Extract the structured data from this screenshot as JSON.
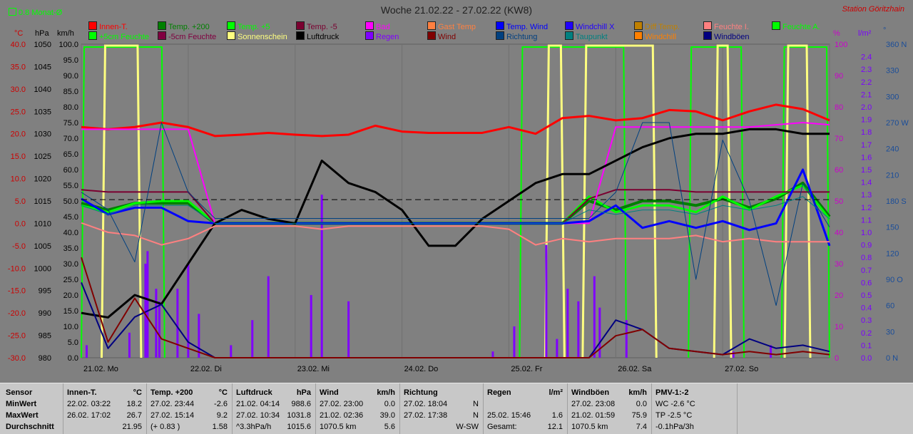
{
  "title": "Woche 21.02.22 - 27.02.22 (KW8)",
  "station": "Station Göritzhain",
  "avg_toggle": "0.8 Monat-Ø",
  "colors": {
    "bg": "#808080",
    "title": "#202020",
    "station": "#cc0000",
    "left_temp": "#cc0000",
    "left_hpa": "#000000",
    "left_kmh": "#000000",
    "right_pct": "#cc00cc",
    "right_lm2": "#7b00ff",
    "right_dir": "#1a4d99"
  },
  "legend": [
    {
      "label": "Innen-T.",
      "color": "#ff0000"
    },
    {
      "label": "Temp. +200",
      "color": "#008000"
    },
    {
      "label": "Temp. +5",
      "color": "#00ff00"
    },
    {
      "label": "Temp. -5",
      "color": "#7a0030"
    },
    {
      "label": "Bad",
      "color": "#ff00ff"
    },
    {
      "label": "Gast Temp",
      "color": "#ff8040"
    },
    {
      "label": "Temp. Wind",
      "color": "#0000ff"
    },
    {
      "label": "Windchill X",
      "color": "#2000ff"
    },
    {
      "label": "Diff Temp.",
      "color": "#c08000"
    },
    {
      "label": "Feuchte I.",
      "color": "#ff8080"
    },
    {
      "label": "Feuchte A.",
      "color": "#00ff00"
    },
    {
      "label": "+5cm Feuchte",
      "color": "#00ff00"
    },
    {
      "label": "-5cm Feuchte",
      "color": "#800040"
    },
    {
      "label": "Sonnenschein",
      "color": "#ffff80"
    },
    {
      "label": "Luftdruck",
      "color": "#000000"
    },
    {
      "label": "Regen",
      "color": "#8000ff"
    },
    {
      "label": "Wind",
      "color": "#800000"
    },
    {
      "label": "Richtung",
      "color": "#004080"
    },
    {
      "label": "Taupunkt",
      "color": "#008080"
    },
    {
      "label": "Windchill",
      "color": "#ff8000"
    },
    {
      "label": "Windböen",
      "color": "#000080"
    }
  ],
  "axes": {
    "temp_unit": "°C",
    "hpa_unit": "hPa",
    "kmh_unit": "km/h",
    "pct_unit": "%",
    "lm2_unit": "l/m²",
    "dir_unit": "°",
    "temp_ticks": [
      "40.0",
      "35.0",
      "30.0",
      "25.0",
      "20.0",
      "15.0",
      "10.0",
      "5.0",
      "0.0",
      "-5.0",
      "-10.0",
      "-15.0",
      "-20.0",
      "-25.0",
      "-30.0"
    ],
    "hpa_ticks": [
      "1050",
      "1045",
      "1040",
      "1035",
      "1030",
      "1025",
      "1020",
      "1015",
      "1010",
      "1005",
      "1000",
      "995",
      "990",
      "985",
      "980"
    ],
    "kmh_ticks": [
      "100.0",
      "95.0",
      "90.0",
      "85.0",
      "80.0",
      "75.0",
      "70.0",
      "65.0",
      "60.0",
      "55.0",
      "50.0",
      "45.0",
      "40.0",
      "35.0",
      "30.0",
      "25.0",
      "20.0",
      "15.0",
      "10.0",
      "5.0",
      "0.0"
    ],
    "pct_ticks": [
      "100",
      "90",
      "80",
      "70",
      "60",
      "50",
      "40",
      "30",
      "20",
      "10",
      "0"
    ],
    "lm2_ticks": [
      "2.4",
      "2.3",
      "2.2",
      "2.1",
      "2.0",
      "1.9",
      "1.8",
      "1.7",
      "1.6",
      "1.5",
      "1.4",
      "1.3",
      "1.2",
      "1.1",
      "1.0",
      "0.9",
      "0.8",
      "0.7",
      "0.6",
      "0.5",
      "0.4",
      "0.3",
      "0.2",
      "0.1",
      "0.0"
    ],
    "dir_ticks": [
      "360 N",
      "330",
      "300",
      "270 W",
      "240",
      "210",
      "180 S",
      "150",
      "120",
      "90 O",
      "60",
      "30",
      "0 N"
    ],
    "x_ticks": [
      "21.02. Mo",
      "22.02. Di",
      "23.02. Mi",
      "24.02. Do",
      "25.02. Fr",
      "26.02. Sa",
      "27.02. So"
    ]
  },
  "chart_data": {
    "type": "line",
    "title": "Woche 21.02.22 - 27.02.22 (KW8)",
    "x_unit": "days",
    "x": [
      0,
      0.25,
      0.5,
      0.75,
      1.0,
      1.25,
      1.5,
      1.75,
      2.0,
      2.25,
      2.5,
      2.75,
      3.0,
      3.25,
      3.5,
      3.75,
      4.0,
      4.25,
      4.5,
      4.75,
      5.0,
      5.25,
      5.5,
      5.75,
      6.0,
      6.25,
      6.5,
      6.75,
      7.0
    ],
    "series": [
      {
        "name": "Innen-T.",
        "axis": "temp",
        "color": "#ff0000",
        "width": 3,
        "values": [
          21.5,
          21.0,
          21.5,
          22.5,
          21.5,
          19.5,
          19.8,
          20.2,
          19.8,
          19.5,
          19.8,
          21.8,
          20.5,
          20.2,
          20.2,
          20.2,
          21.5,
          20.0,
          23.5,
          24.0,
          23.0,
          23.5,
          25.3,
          25.0,
          23.0,
          25.0,
          26.5,
          25.5,
          23.0
        ]
      },
      {
        "name": "Temp. +200",
        "axis": "temp",
        "color": "#008000",
        "width": 4,
        "values": [
          4.5,
          3.0,
          4.5,
          4.5,
          4.5,
          0.0,
          0.0,
          0.0,
          0.0,
          0.0,
          0.0,
          0.0,
          0.0,
          0.0,
          0.0,
          0.0,
          0.0,
          0.0,
          0.0,
          5.0,
          3.0,
          5.0,
          5.0,
          4.0,
          5.5,
          3.5,
          5.5,
          9.0,
          1.5
        ]
      },
      {
        "name": "Temp. +5",
        "axis": "temp",
        "color": "#00ff00",
        "width": 3,
        "values": [
          4.0,
          2.5,
          4.5,
          5.0,
          5.0,
          0.0,
          0.0,
          0.0,
          0.0,
          0.0,
          0.0,
          0.0,
          0.0,
          0.0,
          0.0,
          0.0,
          0.0,
          0.0,
          0.0,
          6.0,
          2.5,
          4.0,
          4.0,
          2.5,
          6.0,
          3.0,
          6.0,
          8.5,
          1.0
        ]
      },
      {
        "name": "Temp. -5",
        "axis": "temp",
        "color": "#7a0030",
        "width": 2,
        "values": [
          7.5,
          7.0,
          7.0,
          7.0,
          7.0,
          0.0,
          0.0,
          0.0,
          0.0,
          0.0,
          0.0,
          0.0,
          0.0,
          0.0,
          0.0,
          0.0,
          0.0,
          0.0,
          0.0,
          5.5,
          7.5,
          7.5,
          7.5,
          7.0,
          7.0,
          7.0,
          7.0,
          7.0,
          7.0
        ]
      },
      {
        "name": "Bad",
        "axis": "temp",
        "color": "#ff00ff",
        "width": 2,
        "values": [
          21.0,
          21.0,
          21.0,
          21.0,
          21.0,
          0.0,
          0.0,
          0.0,
          0.0,
          0.0,
          0.0,
          0.0,
          0.0,
          0.0,
          0.0,
          0.0,
          0.0,
          0.0,
          0.0,
          0.0,
          21.5,
          21.5,
          21.5,
          21.5,
          21.5,
          21.5,
          22.0,
          22.5,
          22.0
        ]
      },
      {
        "name": "Temp. Wind",
        "axis": "temp",
        "color": "#0000ff",
        "width": 3,
        "values": [
          5.5,
          2.0,
          3.5,
          3.5,
          0.5,
          0.0,
          0.0,
          0.0,
          0.0,
          0.0,
          0.0,
          0.0,
          0.0,
          0.0,
          0.0,
          0.0,
          0.0,
          0.0,
          0.0,
          0.5,
          4.0,
          -1.0,
          0.5,
          -1.0,
          0.5,
          -1.5,
          0.0,
          12.0,
          -5.0
        ]
      },
      {
        "name": "Luftdruck",
        "axis": "hpa",
        "color": "#000000",
        "width": 3,
        "values": [
          990,
          989,
          994,
          992,
          1001,
          1010,
          1013,
          1011,
          1010,
          1024,
          1019,
          1017,
          1013,
          1005,
          1005,
          1011,
          1015,
          1019,
          1021,
          1021,
          1024,
          1027,
          1029,
          1030,
          1030,
          1031,
          1031,
          1030,
          1030
        ]
      },
      {
        "name": "Feuchte I.",
        "axis": "pct",
        "color": "#ff8080",
        "width": 2,
        "values": [
          43,
          40,
          39,
          36,
          38,
          42,
          42,
          42,
          42,
          41,
          42,
          42,
          42,
          42,
          42,
          42,
          41,
          36,
          38,
          37,
          38,
          38,
          38,
          39,
          37,
          38,
          37,
          37,
          37
        ]
      },
      {
        "name": "Taupunkt",
        "axis": "temp",
        "color": "#008080",
        "width": 1,
        "values": [
          4.0,
          2.0,
          4.0,
          4.0,
          4.0,
          0.0,
          0.0,
          0.0,
          0.0,
          0.0,
          0.0,
          0.0,
          0.0,
          0.0,
          0.0,
          0.0,
          0.0,
          0.0,
          0.0,
          3.0,
          2.0,
          3.0,
          3.0,
          2.0,
          4.0,
          3.0,
          4.0,
          6.0,
          1.0
        ]
      },
      {
        "name": "Windböen",
        "axis": "kmh",
        "color": "#000080",
        "width": 2,
        "values": [
          24,
          3,
          13,
          17,
          5,
          0,
          0,
          0,
          0,
          0,
          0,
          0,
          0,
          0,
          0,
          0,
          0,
          0,
          0,
          0,
          12,
          9,
          3,
          2,
          1,
          6,
          3,
          4,
          2
        ]
      },
      {
        "name": "Wind",
        "axis": "kmh",
        "color": "#800000",
        "width": 2,
        "values": [
          32,
          5,
          19,
          6,
          3,
          0,
          0,
          0,
          0,
          0,
          0,
          0,
          0,
          0,
          0,
          0,
          0,
          0,
          0,
          0,
          7,
          9,
          3,
          2,
          1,
          2,
          1,
          2,
          1
        ]
      },
      {
        "name": "Richtung",
        "axis": "dir",
        "color": "#004080",
        "width": 1,
        "values": [
          190,
          170,
          110,
          270,
          190,
          160,
          160,
          160,
          160,
          160,
          160,
          160,
          160,
          160,
          160,
          160,
          160,
          160,
          160,
          160,
          190,
          270,
          270,
          90,
          250,
          180,
          60,
          200,
          150
        ]
      }
    ],
    "sunshine_periods": [
      [
        0.19,
        0.56
      ],
      [
        4.34,
        4.52
      ],
      [
        4.69,
        5.38
      ],
      [
        5.92,
        6.08
      ],
      [
        6.58,
        6.82
      ]
    ],
    "sun_wide_periods": [
      [
        0.0,
        0.78
      ],
      [
        4.1,
        5.1
      ],
      [
        5.68,
        6.2
      ],
      [
        6.55,
        7.0
      ]
    ],
    "rain": [
      [
        0.05,
        0.1
      ],
      [
        0.45,
        0.2
      ],
      [
        0.6,
        0.75
      ],
      [
        0.62,
        0.85
      ],
      [
        0.7,
        0.55
      ],
      [
        0.73,
        0.45
      ],
      [
        0.9,
        0.55
      ],
      [
        1.0,
        0.75
      ],
      [
        1.1,
        0.35
      ],
      [
        1.4,
        0.1
      ],
      [
        1.6,
        0.3
      ],
      [
        1.75,
        0.65
      ],
      [
        2.15,
        0.5
      ],
      [
        2.25,
        1.3
      ],
      [
        2.5,
        0.45
      ],
      [
        3.85,
        0.05
      ],
      [
        4.05,
        0.25
      ],
      [
        4.35,
        0.9
      ],
      [
        4.45,
        0.15
      ],
      [
        4.55,
        0.55
      ],
      [
        4.65,
        0.45
      ],
      [
        4.8,
        0.65
      ],
      [
        4.85,
        0.4
      ],
      [
        5.1,
        0.3
      ],
      [
        6.1,
        0.05
      ],
      [
        6.45,
        0.1
      ]
    ],
    "ref_line_temp": 5.3,
    "temp_range": [
      -30,
      40
    ],
    "hpa_range": [
      980,
      1050
    ],
    "kmh_range": [
      0,
      100
    ],
    "pct_range": [
      0,
      100
    ],
    "lm2_range": [
      0,
      2.5
    ],
    "dir_range": [
      0,
      360
    ]
  },
  "stats": {
    "row_labels": [
      "Sensor",
      "MinWert",
      "MaxWert",
      "Durchschnitt"
    ],
    "columns": [
      {
        "header": "Innen-T.",
        "unit": "°C",
        "min_time": "22.02.  03:22",
        "min": "18.2",
        "max_time": "26.02.  17:02",
        "max": "26.7",
        "avg_label": "",
        "avg": "21.95"
      },
      {
        "header": "Temp. +200",
        "unit": "°C",
        "min_time": "27.02.  23:44",
        "min": "-2.6",
        "max_time": "27.02.  15:14",
        "max": "9.2",
        "avg_label": "(+ 0.83 )",
        "avg": "1.58"
      },
      {
        "header": "Luftdruck",
        "unit": "hPa",
        "min_time": "21.02.  04:14",
        "min": "988.6",
        "max_time": "27.02.  10:34",
        "max": "1031.8",
        "avg_label": "^3.3hPa/h",
        "avg": "1015.6"
      },
      {
        "header": "Wind",
        "unit": "km/h",
        "min_time": "27.02.  23:00",
        "min": "0.0",
        "max_time": "21.02.  02:36",
        "max": "39.0",
        "avg_label": "1070.5 km",
        "avg": "5.6"
      },
      {
        "header": "Richtung",
        "unit": "",
        "min_time": "27.02.  18:04",
        "min": "N",
        "max_time": "27.02.  17:38",
        "max": "N",
        "avg_label": "",
        "avg": "W-SW"
      },
      {
        "header": "Regen",
        "unit": "l/m²",
        "min_time": "",
        "min": "",
        "max_time": "25.02.  15:46",
        "max": "1.6",
        "avg_label": "Gesamt:",
        "avg": "12.1"
      },
      {
        "header": "Windböen",
        "unit": "km/h",
        "min_time": "27.02.  23:08",
        "min": "0.0",
        "max_time": "21.02.  01:59",
        "max": "75.9",
        "avg_label": "1070.5 km",
        "avg": "7.4"
      },
      {
        "header": "PMV-1:-2",
        "unit": "",
        "min_time": "WC -2.6 °C",
        "min": "",
        "max_time": "TP -2.5 °C",
        "max": "",
        "avg_label": "-0.1hPa/3h",
        "avg": ""
      }
    ]
  }
}
